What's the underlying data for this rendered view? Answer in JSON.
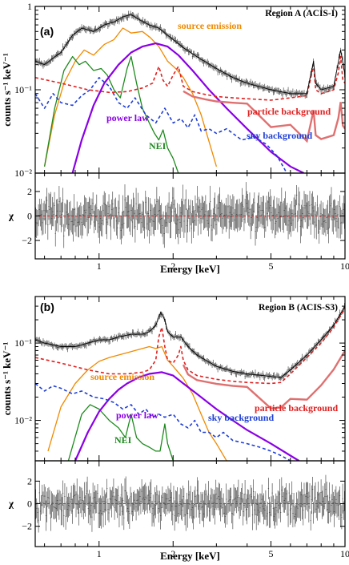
{
  "colors": {
    "data": "#333333",
    "total_model": "#000000",
    "source_emission": "#f08a00",
    "nei": "#1e8a1e",
    "power_law": "#8a00e6",
    "sky_background": "#1f3fd6",
    "particle_background": "#e02020",
    "particle_curve_high": "#e07070"
  },
  "chart_data": [
    {
      "type": "line",
      "panel_tag": "(a)",
      "region_label": "Region A (ACIS-I)",
      "xlabel": "Energy [keV]",
      "ylabel": "counts s⁻¹ keV⁻¹",
      "residual_label": "χ",
      "x_scale": "log",
      "y_scale": "log",
      "xlim": [
        0.55,
        10
      ],
      "ylim": [
        0.01,
        1
      ],
      "residual_ylim": [
        -3.5,
        3.5
      ],
      "x_ticks": [
        "1",
        "2",
        "5",
        "10"
      ],
      "y_ticks": [
        "10⁻²",
        "10⁻¹",
        "1"
      ],
      "residual_ticks": [
        "2",
        "0",
        "−2"
      ],
      "annotations": [
        "source emission",
        "power law",
        "NEI",
        "sky background",
        "particle background"
      ],
      "series": [
        {
          "name": "source emission",
          "x": [
            0.6,
            0.66,
            0.72,
            0.8,
            0.87,
            0.95,
            1.05,
            1.15,
            1.25,
            1.35,
            1.5,
            1.62,
            1.75,
            1.9,
            2.05,
            2.2,
            2.4,
            2.6,
            3.0
          ],
          "y": [
            0.012,
            0.05,
            0.12,
            0.22,
            0.3,
            0.26,
            0.35,
            0.4,
            0.55,
            0.48,
            0.5,
            0.42,
            0.33,
            0.22,
            0.18,
            0.14,
            0.09,
            0.05,
            0.012
          ]
        },
        {
          "name": "NEI",
          "x": [
            0.6,
            0.66,
            0.72,
            0.78,
            0.83,
            0.88,
            0.95,
            1.02,
            1.08,
            1.15,
            1.22,
            1.3,
            1.35,
            1.42,
            1.5,
            1.6,
            1.68,
            1.75,
            1.82,
            1.9,
            2.0,
            2.1
          ],
          "y": [
            0.012,
            0.06,
            0.17,
            0.25,
            0.2,
            0.22,
            0.17,
            0.18,
            0.15,
            0.1,
            0.08,
            0.18,
            0.25,
            0.12,
            0.06,
            0.04,
            0.03,
            0.025,
            0.033,
            0.02,
            0.015,
            0.01
          ]
        },
        {
          "name": "power law",
          "x": [
            0.78,
            0.85,
            0.95,
            1.05,
            1.2,
            1.35,
            1.5,
            1.7,
            1.9,
            2.1,
            2.4,
            2.8,
            3.3,
            4.0,
            5.0,
            6.0,
            6.8
          ],
          "y": [
            0.01,
            0.025,
            0.065,
            0.12,
            0.2,
            0.28,
            0.33,
            0.36,
            0.33,
            0.26,
            0.17,
            0.1,
            0.06,
            0.034,
            0.018,
            0.012,
            0.01
          ]
        },
        {
          "name": "sky background",
          "x": [
            0.55,
            0.6,
            0.65,
            0.7,
            0.78,
            0.85,
            0.92,
            1.0,
            1.1,
            1.2,
            1.3,
            1.4,
            1.55,
            1.7,
            1.85,
            2.0,
            2.15,
            2.3,
            2.45,
            2.6,
            2.8,
            3.0,
            3.3,
            3.8,
            4.3,
            4.8,
            5.3,
            5.8
          ],
          "y": [
            0.09,
            0.06,
            0.09,
            0.07,
            0.065,
            0.085,
            0.1,
            0.14,
            0.11,
            0.07,
            0.06,
            0.08,
            0.05,
            0.04,
            0.06,
            0.04,
            0.045,
            0.035,
            0.05,
            0.032,
            0.034,
            0.03,
            0.034,
            0.025,
            0.027,
            0.022,
            0.016,
            0.01
          ]
        },
        {
          "name": "particle background",
          "x": [
            0.55,
            0.7,
            0.9,
            1.1,
            1.3,
            1.5,
            1.65,
            1.75,
            1.82,
            1.9,
            2.0,
            2.1,
            2.2,
            2.4,
            2.7,
            3.0,
            3.5,
            4.0,
            5.0,
            6.0,
            7.0,
            7.3,
            7.45,
            7.6,
            8.0,
            9.0,
            9.4,
            9.6,
            9.8,
            10.0
          ],
          "y": [
            0.14,
            0.12,
            0.1,
            0.093,
            0.095,
            0.105,
            0.12,
            0.19,
            0.13,
            0.11,
            0.15,
            0.19,
            0.11,
            0.095,
            0.088,
            0.083,
            0.08,
            0.078,
            0.075,
            0.08,
            0.085,
            0.15,
            0.2,
            0.1,
            0.09,
            0.1,
            0.16,
            0.25,
            0.13,
            0.12
          ]
        },
        {
          "name": "total",
          "x": [
            0.55,
            0.6,
            0.65,
            0.7,
            0.78,
            0.85,
            0.95,
            1.05,
            1.15,
            1.25,
            1.35,
            1.45,
            1.6,
            1.75,
            1.85,
            2.0,
            2.2,
            2.5,
            3.0,
            3.5,
            4.0,
            5.0,
            6.0,
            7.0,
            7.45,
            7.6,
            8.0,
            9.0,
            9.6,
            10.0
          ],
          "y": [
            0.22,
            0.2,
            0.24,
            0.28,
            0.45,
            0.55,
            0.5,
            0.6,
            0.65,
            0.75,
            0.8,
            0.7,
            0.6,
            0.55,
            0.48,
            0.4,
            0.32,
            0.25,
            0.18,
            0.14,
            0.12,
            0.1,
            0.09,
            0.09,
            0.22,
            0.12,
            0.1,
            0.11,
            0.3,
            0.15
          ]
        }
      ]
    },
    {
      "type": "line",
      "panel_tag": "(b)",
      "region_label": "Region B (ACIS-S3)",
      "xlabel": "Energy [keV]",
      "ylabel": "counts s⁻¹ keV⁻¹",
      "residual_label": "χ",
      "x_scale": "log",
      "y_scale": "log",
      "xlim": [
        0.55,
        10
      ],
      "ylim": [
        0.003,
        0.4
      ],
      "residual_ylim": [
        -3.8,
        3.8
      ],
      "x_ticks": [
        "1",
        "2",
        "5",
        "10"
      ],
      "y_ticks": [
        "10⁻²",
        "10⁻¹"
      ],
      "residual_ticks": [
        "2",
        "0",
        "−2"
      ],
      "annotations": [
        "source emission",
        "power law",
        "NEI",
        "sky background",
        "particle background"
      ],
      "series": [
        {
          "name": "source emission",
          "x": [
            0.62,
            0.7,
            0.8,
            0.9,
            1.0,
            1.1,
            1.2,
            1.3,
            1.4,
            1.5,
            1.6,
            1.7,
            1.8,
            1.9,
            2.0,
            2.2,
            2.4,
            2.6,
            2.8,
            3.0,
            3.3
          ],
          "y": [
            0.004,
            0.015,
            0.03,
            0.045,
            0.058,
            0.065,
            0.07,
            0.075,
            0.08,
            0.085,
            0.09,
            0.085,
            0.09,
            0.06,
            0.05,
            0.035,
            0.022,
            0.012,
            0.007,
            0.005,
            0.003
          ]
        },
        {
          "name": "NEI",
          "x": [
            0.75,
            0.85,
            0.92,
            1.0,
            1.1,
            1.2,
            1.28,
            1.35,
            1.42,
            1.5,
            1.6,
            1.7,
            1.77,
            1.85,
            1.9,
            2.0
          ],
          "y": [
            0.003,
            0.012,
            0.016,
            0.014,
            0.01,
            0.008,
            0.006,
            0.012,
            0.006,
            0.005,
            0.0045,
            0.004,
            0.004,
            0.009,
            0.005,
            0.003
          ]
        },
        {
          "name": "power law",
          "x": [
            0.8,
            0.9,
            1.0,
            1.1,
            1.2,
            1.3,
            1.45,
            1.6,
            1.8,
            2.0,
            2.2,
            2.5,
            3.0,
            3.5,
            4.0,
            5.0,
            6.0,
            6.5
          ],
          "y": [
            0.003,
            0.007,
            0.013,
            0.019,
            0.025,
            0.03,
            0.036,
            0.04,
            0.042,
            0.038,
            0.03,
            0.022,
            0.014,
            0.01,
            0.0075,
            0.005,
            0.0035,
            0.003
          ]
        },
        {
          "name": "sky background",
          "x": [
            0.55,
            0.6,
            0.65,
            0.7,
            0.78,
            0.85,
            0.95,
            1.05,
            1.15,
            1.25,
            1.35,
            1.45,
            1.55,
            1.65,
            1.75,
            1.85,
            2.0,
            2.15,
            2.3,
            2.45,
            2.6,
            2.8,
            3.0,
            3.2,
            3.5,
            4.0,
            4.5,
            5.0,
            5.5,
            6.0
          ],
          "y": [
            0.03,
            0.024,
            0.028,
            0.026,
            0.022,
            0.024,
            0.02,
            0.019,
            0.017,
            0.014,
            0.016,
            0.012,
            0.014,
            0.011,
            0.012,
            0.011,
            0.012,
            0.009,
            0.008,
            0.01,
            0.007,
            0.007,
            0.006,
            0.007,
            0.0055,
            0.005,
            0.0045,
            0.004,
            0.0035,
            0.003
          ]
        },
        {
          "name": "particle background",
          "x": [
            0.55,
            0.7,
            0.9,
            1.1,
            1.3,
            1.5,
            1.6,
            1.7,
            1.75,
            1.8,
            1.85,
            1.9,
            2.0,
            2.1,
            2.15,
            2.2,
            2.3,
            2.5,
            3.0,
            3.5,
            4.0,
            5.0,
            5.5,
            6.0,
            7.0,
            8.0,
            9.0,
            10.0
          ],
          "y": [
            0.065,
            0.055,
            0.045,
            0.04,
            0.04,
            0.042,
            0.045,
            0.06,
            0.12,
            0.16,
            0.09,
            0.06,
            0.055,
            0.07,
            0.09,
            0.06,
            0.045,
            0.038,
            0.034,
            0.032,
            0.031,
            0.03,
            0.031,
            0.04,
            0.065,
            0.1,
            0.16,
            0.28
          ]
        },
        {
          "name": "total",
          "x": [
            0.55,
            0.6,
            0.7,
            0.8,
            0.9,
            1.0,
            1.1,
            1.2,
            1.35,
            1.5,
            1.6,
            1.7,
            1.78,
            1.85,
            1.9,
            2.0,
            2.15,
            2.3,
            2.5,
            3.0,
            3.5,
            4.0,
            5.0,
            5.5,
            6.0,
            7.0,
            8.0,
            9.0,
            10.0
          ],
          "y": [
            0.11,
            0.1,
            0.09,
            0.09,
            0.1,
            0.11,
            0.11,
            0.12,
            0.13,
            0.13,
            0.14,
            0.17,
            0.25,
            0.2,
            0.14,
            0.12,
            0.12,
            0.09,
            0.07,
            0.05,
            0.043,
            0.04,
            0.037,
            0.036,
            0.045,
            0.07,
            0.11,
            0.17,
            0.3
          ]
        }
      ]
    }
  ]
}
